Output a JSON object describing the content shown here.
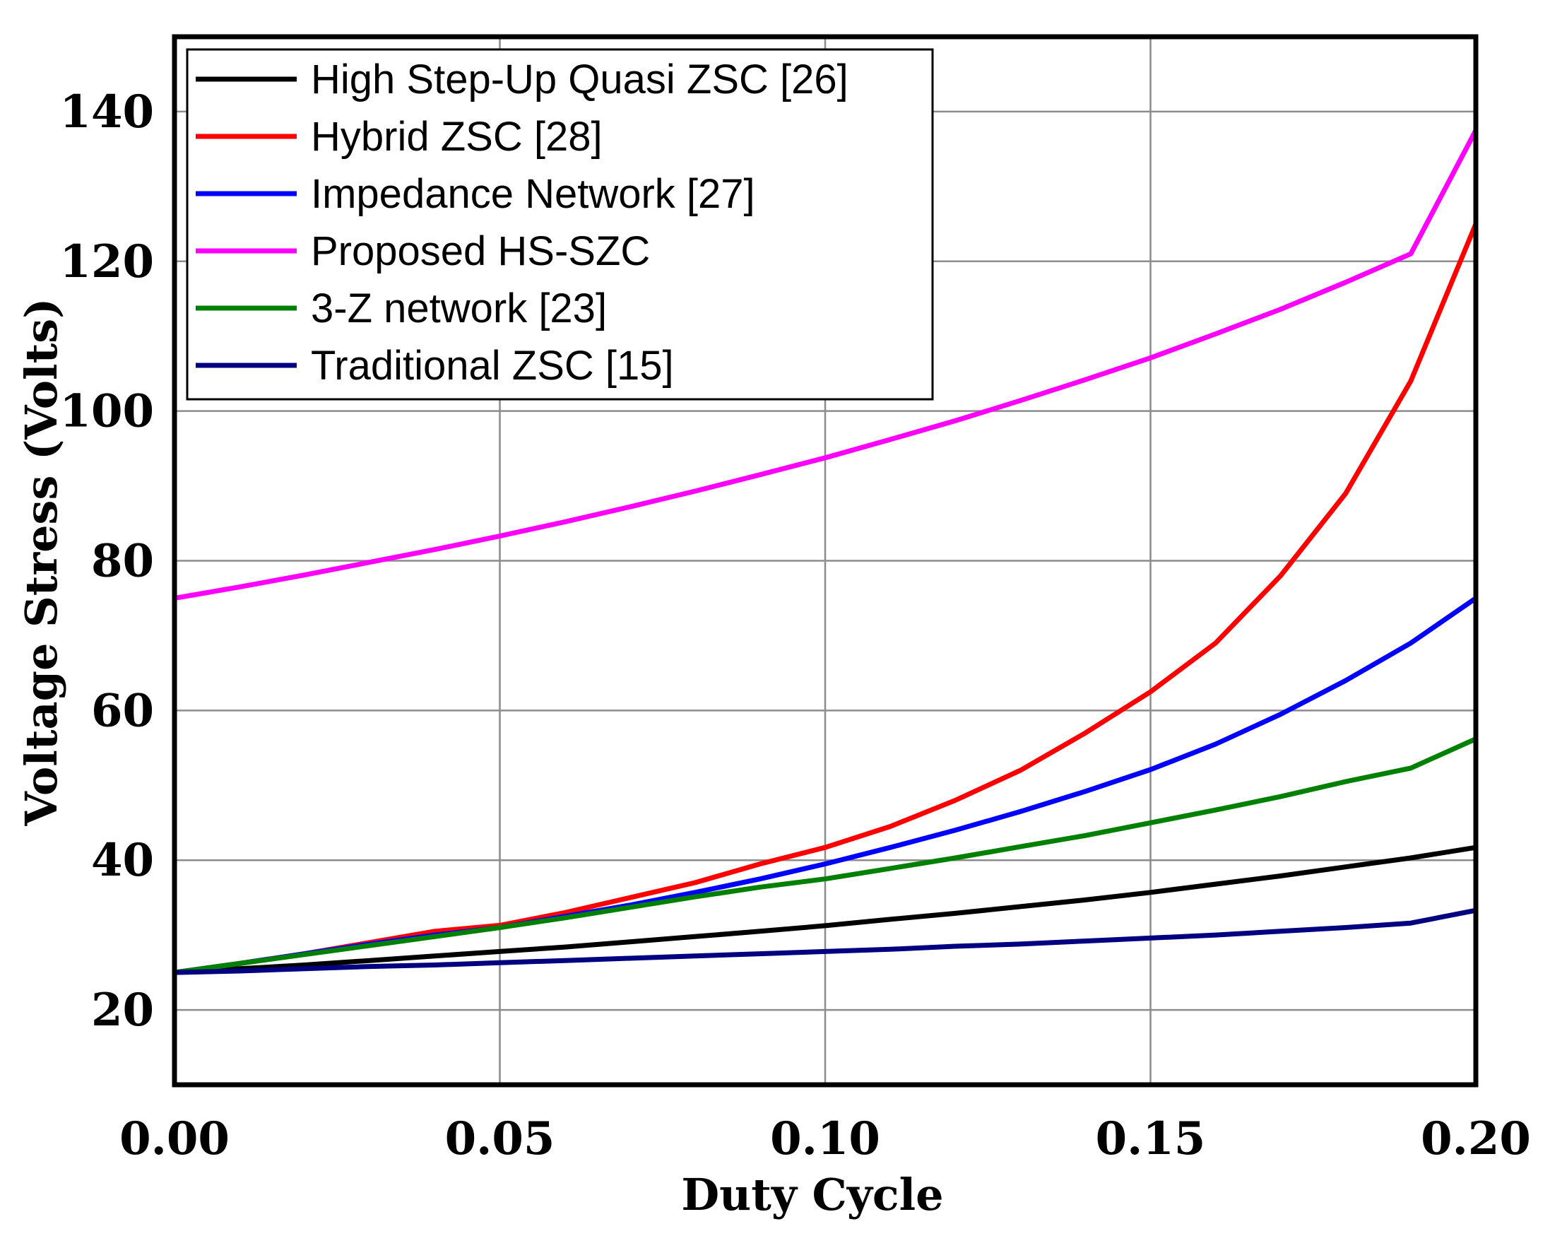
{
  "chart_data": {
    "type": "line",
    "title": "",
    "xlabel": "Duty Cycle",
    "ylabel": "Voltage Stress (Volts)",
    "xlim": [
      0,
      0.2
    ],
    "ylim": [
      10,
      150
    ],
    "xticks": [
      0,
      0.05,
      0.1,
      0.15,
      0.2
    ],
    "xtick_labels": [
      "0.00",
      "0.05",
      "0.10",
      "0.15",
      "0.20"
    ],
    "yticks": [
      20,
      40,
      60,
      80,
      100,
      120,
      140
    ],
    "ytick_labels": [
      "20",
      "40",
      "60",
      "80",
      "100",
      "120",
      "140"
    ],
    "grid": true,
    "legend_position": "top-left",
    "x": [
      0,
      0.01,
      0.02,
      0.03,
      0.04,
      0.05,
      0.06,
      0.07,
      0.08,
      0.09,
      0.1,
      0.11,
      0.12,
      0.13,
      0.14,
      0.15,
      0.16,
      0.17,
      0.18,
      0.19,
      0.2
    ],
    "series": [
      {
        "name": "High Step-Up Quasi ZSC [26]",
        "color": "#000000",
        "values": [
          25.0,
          25.5,
          26.0,
          26.6,
          27.2,
          27.8,
          28.4,
          29.1,
          29.8,
          30.5,
          31.25,
          32.1,
          32.9,
          33.8,
          34.7,
          35.7,
          36.8,
          37.9,
          39.1,
          40.3,
          41.7
        ]
      },
      {
        "name": "Hybrid ZSC [28]",
        "color": "#ff0000",
        "values": [
          25.0,
          26.2,
          27.5,
          29.0,
          30.5,
          31.3,
          33.0,
          35.0,
          37.0,
          39.5,
          41.7,
          44.5,
          48.0,
          52.0,
          57.0,
          62.5,
          69.0,
          78.0,
          89.0,
          104.0,
          125.0
        ]
      },
      {
        "name": "Impedance Network [27]",
        "color": "#0000ff",
        "values": [
          25.0,
          26.2,
          27.5,
          28.8,
          30.0,
          31.0,
          32.5,
          34.0,
          35.7,
          37.5,
          39.5,
          41.7,
          44.0,
          46.5,
          49.2,
          52.1,
          55.5,
          59.5,
          64.0,
          69.0,
          75.0
        ]
      },
      {
        "name": "Proposed HS-SZC",
        "color": "#ff00ff",
        "values": [
          75.0,
          76.5,
          78.1,
          79.8,
          81.5,
          83.3,
          85.2,
          87.2,
          89.3,
          91.5,
          93.75,
          96.2,
          98.7,
          101.4,
          104.2,
          107.1,
          110.3,
          113.6,
          117.2,
          121.0,
          137.5
        ]
      },
      {
        "name": "3-Z network [23]",
        "color": "#008000",
        "values": [
          25.0,
          26.2,
          27.4,
          28.6,
          29.8,
          31.0,
          32.3,
          33.7,
          35.1,
          36.4,
          37.5,
          38.9,
          40.3,
          41.8,
          43.3,
          45.0,
          46.7,
          48.5,
          50.5,
          52.3,
          56.2
        ]
      },
      {
        "name": "Traditional ZSC [15]",
        "color": "#000080",
        "values": [
          25.0,
          25.2,
          25.5,
          25.8,
          26.0,
          26.3,
          26.6,
          26.9,
          27.2,
          27.5,
          27.8,
          28.1,
          28.5,
          28.8,
          29.2,
          29.6,
          30.0,
          30.5,
          31.0,
          31.6,
          33.3
        ]
      }
    ]
  }
}
